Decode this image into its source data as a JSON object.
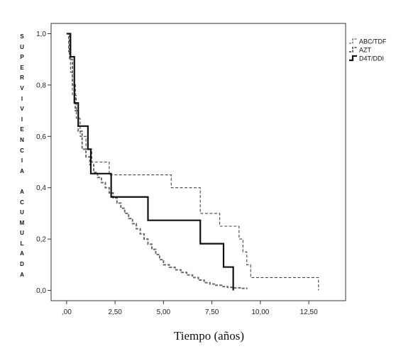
{
  "chart_data": {
    "type": "line",
    "subtype": "kaplan-meier-step",
    "title": "",
    "xlabel": "Tiempo (años)",
    "ylabel": "SUPERVIVIENCIA ACUMULADA",
    "xlim": [
      -0.8,
      14.4
    ],
    "ylim": [
      -0.04,
      1.04
    ],
    "x_ticks": [
      0,
      2.5,
      5,
      7.5,
      10,
      12.5
    ],
    "x_tick_labels": [
      ",00",
      "2,50",
      "5,00",
      "7,50",
      "10,00",
      "12,50"
    ],
    "y_ticks": [
      0,
      0.2,
      0.4,
      0.6,
      0.8,
      1.0
    ],
    "y_tick_labels": [
      "0,0",
      "0,2",
      "0,4",
      "0,6",
      "0,8",
      "1,0"
    ],
    "grid": false,
    "legend_position": "top-right",
    "series": [
      {
        "name": "ABC/TDF",
        "style": "dashed-thin",
        "color": "#444444",
        "x": [
          0,
          0.1,
          0.2,
          0.3,
          0.5,
          0.7,
          1.0,
          1.3,
          1.6,
          2.2,
          2.8,
          4.5,
          5.4,
          6.3,
          6.9,
          7.4,
          7.9,
          8.4,
          8.9,
          9.1,
          9.3,
          9.5,
          13.0
        ],
        "y": [
          1.0,
          0.93,
          0.85,
          0.76,
          0.67,
          0.6,
          0.55,
          0.5,
          0.5,
          0.45,
          0.45,
          0.45,
          0.4,
          0.4,
          0.3,
          0.3,
          0.25,
          0.25,
          0.2,
          0.15,
          0.1,
          0.05,
          0.0
        ]
      },
      {
        "name": "AZT",
        "style": "dashed-thick",
        "color": "#6a6a6a",
        "x": [
          0,
          0.15,
          0.3,
          0.45,
          0.6,
          0.8,
          1.0,
          1.2,
          1.4,
          1.6,
          1.8,
          2.0,
          2.2,
          2.4,
          2.6,
          2.8,
          3.0,
          3.2,
          3.4,
          3.6,
          3.8,
          4.0,
          4.2,
          4.4,
          4.6,
          4.8,
          5.0,
          5.3,
          5.6,
          5.9,
          6.2,
          6.5,
          6.8,
          7.1,
          7.4,
          7.7,
          8.0,
          8.3,
          8.6,
          9.0,
          9.3
        ],
        "y": [
          1.0,
          0.9,
          0.8,
          0.7,
          0.62,
          0.55,
          0.52,
          0.49,
          0.46,
          0.44,
          0.42,
          0.4,
          0.38,
          0.36,
          0.34,
          0.32,
          0.3,
          0.28,
          0.26,
          0.24,
          0.22,
          0.2,
          0.18,
          0.16,
          0.14,
          0.12,
          0.1,
          0.09,
          0.08,
          0.07,
          0.06,
          0.05,
          0.04,
          0.03,
          0.025,
          0.02,
          0.015,
          0.012,
          0.01,
          0.008,
          0.005
        ]
      },
      {
        "name": "D4T/DDI",
        "style": "solid-thick",
        "color": "#111111",
        "x": [
          0,
          0.2,
          0.4,
          0.6,
          1.1,
          1.25,
          2.2,
          2.3,
          4.2,
          6.9,
          8.1,
          8.6
        ],
        "y": [
          1.0,
          0.91,
          0.73,
          0.64,
          0.55,
          0.455,
          0.455,
          0.364,
          0.273,
          0.182,
          0.091,
          0.0
        ]
      }
    ]
  }
}
